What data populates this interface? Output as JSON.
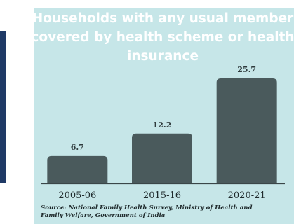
{
  "chart_data": {
    "type": "bar",
    "title": [
      "Households with any usual member",
      "covered by health scheme or health",
      "insurance"
    ],
    "categories": [
      "2005-06",
      "2015-16",
      "2020-21"
    ],
    "values": [
      6.7,
      12.2,
      25.7
    ],
    "color": "#4a5a5c",
    "source": [
      "Source: National Family Health Survey, Ministry of Health and",
      "Family Welfare, Government of India"
    ]
  }
}
